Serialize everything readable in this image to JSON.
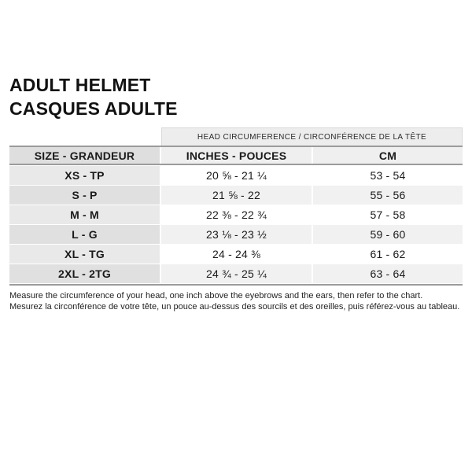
{
  "page": {
    "title_line1": "ADULT HELMET",
    "title_line2": "CASQUES ADULTE"
  },
  "table": {
    "banner": "HEAD CIRCUMFERENCE / CIRCONFÉRENCE DE LA TÊTE",
    "headers": {
      "size": "SIZE - GRANDEUR",
      "inches": "INCHES - POUCES",
      "cm": "CM"
    },
    "rows": [
      {
        "size": "XS - TP",
        "inches": "20 ⅝ - 21 ¼",
        "cm": "53 - 54"
      },
      {
        "size": "S - P",
        "inches": "21 ⅝ - 22",
        "cm": "55 - 56"
      },
      {
        "size": "M - M",
        "inches": "22 ⅜ - 22 ¾",
        "cm": "57 - 58"
      },
      {
        "size": "L - G",
        "inches": "23 ⅛ - 23 ½",
        "cm": "59 - 60"
      },
      {
        "size": "XL - TG",
        "inches": "24 - 24 ⅜",
        "cm": "61 - 62"
      },
      {
        "size": "2XL - 2TG",
        "inches": "24 ¾ - 25 ¼",
        "cm": "63 - 64"
      }
    ]
  },
  "footer": {
    "line1": "Measure the circumference of your head, one inch above the eyebrows and the ears, then refer to the chart.",
    "line2": "Mesurez la circonférence de votre tête, un pouce au-dessus des sourcils et des oreilles, puis référez-vous au tableau."
  },
  "colors": {
    "banner_bg": "#ededed",
    "header_left_bg": "#dedede",
    "header_data_bg": "#efefef",
    "row_odd_left_bg": "#e9e9e9",
    "row_even_left_bg": "#e0e0e0",
    "row_odd_data_bg": "#ffffff",
    "row_even_data_bg": "#f1f1f1",
    "border": "#9b9b9b",
    "text": "#1a1a1a"
  }
}
